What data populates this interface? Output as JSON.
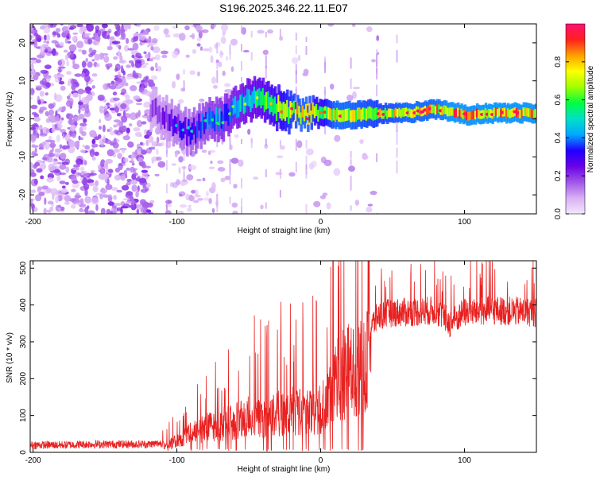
{
  "title": "S196.2025.346.22.11.E07",
  "colorbar": {
    "label": "Normalized spectral amplitude",
    "ticks": [
      "0.0",
      "0.2",
      "0.4",
      "0.6",
      "0.8"
    ],
    "tick_values": [
      0.0,
      0.2,
      0.4,
      0.6,
      0.8
    ],
    "range": [
      0,
      1
    ],
    "stops": [
      "#f4e6ff",
      "#d8b0f4",
      "#a056e8",
      "#6a00e6",
      "#2000ff",
      "#00a8ff",
      "#00e0c8",
      "#00ff40",
      "#a0ff00",
      "#ffff00",
      "#ffa000",
      "#ff2020",
      "#ff1070"
    ]
  },
  "chart_data": [
    {
      "type": "heatmap",
      "name": "spectrogram",
      "title": "S196.2025.346.22.11.E07",
      "xlabel": "Height of straight line (km)",
      "ylabel": "Frequency (Hz)",
      "xlim": [
        -202,
        150
      ],
      "ylim": [
        -25,
        25
      ],
      "xticks": [
        -200,
        -100,
        0,
        100
      ],
      "xtick_labels": [
        "-200",
        "-100",
        "0",
        "100"
      ],
      "yticks": [
        -20,
        -10,
        0,
        10,
        20
      ],
      "ytick_labels": [
        "-20",
        "-10",
        "0",
        "10",
        "20"
      ],
      "ridge": {
        "description": "signal ridge frequency (Hz) vs height (km)",
        "x": [
          -115,
          -100,
          -90,
          -80,
          -70,
          -60,
          -50,
          -40,
          -30,
          -20,
          -10,
          0,
          10,
          20,
          40,
          60,
          80,
          90,
          100,
          120,
          150
        ],
        "freq": [
          2,
          -2,
          -4,
          -1,
          0,
          2,
          5,
          5,
          3,
          2,
          1,
          2,
          1,
          1,
          1.5,
          1.5,
          2.5,
          2,
          1,
          1.5,
          1.5
        ],
        "amplitude": [
          0.2,
          0.3,
          0.35,
          0.4,
          0.45,
          0.5,
          0.55,
          0.6,
          0.7,
          0.8,
          0.85,
          0.7,
          0.85,
          0.85,
          0.8,
          0.85,
          0.85,
          0.9,
          0.9,
          0.9,
          0.9
        ]
      }
    },
    {
      "type": "line",
      "name": "snr",
      "xlabel": "Height of straight line (km)",
      "ylabel": "SNR (10 * v/v)",
      "xlim": [
        -202,
        150
      ],
      "ylim": [
        0,
        520
      ],
      "xticks": [
        -200,
        -100,
        0,
        100
      ],
      "xtick_labels": [
        "-200",
        "-100",
        "0",
        "100"
      ],
      "yticks": [
        0,
        100,
        200,
        300,
        400,
        500
      ],
      "ytick_labels": [
        "0",
        "100",
        "200",
        "300",
        "400",
        "500"
      ],
      "color": "#e82020",
      "series": [
        {
          "name": "SNR",
          "x": [
            -202,
            -180,
            -160,
            -140,
            -120,
            -110,
            -100,
            -90,
            -80,
            -70,
            -60,
            -50,
            -40,
            -30,
            -20,
            -10,
            0,
            10,
            20,
            25,
            30,
            33,
            40,
            50,
            60,
            80,
            90,
            100,
            120,
            150
          ],
          "y": [
            20,
            20,
            22,
            22,
            22,
            25,
            40,
            70,
            90,
            100,
            110,
            130,
            120,
            140,
            150,
            140,
            160,
            250,
            300,
            310,
            320,
            330,
            370,
            380,
            380,
            385,
            350,
            380,
            385,
            380
          ]
        }
      ]
    }
  ]
}
